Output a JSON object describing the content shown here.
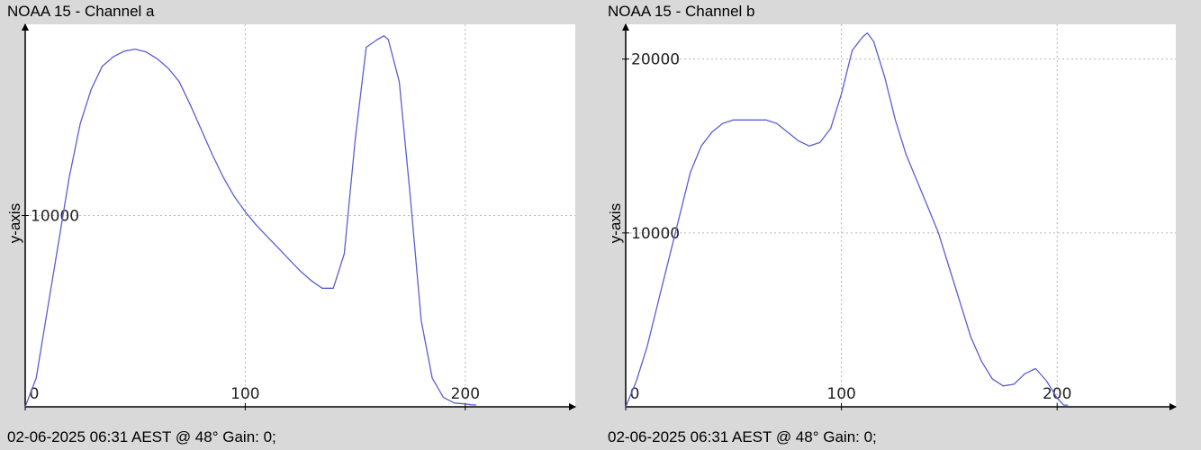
{
  "chart_data": [
    {
      "type": "line",
      "title": "NOAA 15 - Channel a",
      "xlabel": "",
      "ylabel": "y-axis",
      "xlim": [
        0,
        250
      ],
      "ylim": [
        0,
        20000
      ],
      "x_ticks": [
        0,
        100,
        200
      ],
      "y_ticks": [
        10000
      ],
      "grid": true,
      "line_color": "#5a5fd0",
      "footer": "02-06-2025 06:31 AEST @ 48° Gain: 0;",
      "series": [
        {
          "x": [
            0,
            5,
            10,
            15,
            20,
            25,
            30,
            35,
            40,
            45,
            50,
            55,
            60,
            65,
            70,
            75,
            80,
            85,
            90,
            95,
            100,
            105,
            110,
            115,
            120,
            125,
            130,
            135,
            140,
            145,
            150,
            155,
            160,
            163,
            165,
            170,
            175,
            180,
            185,
            190,
            195,
            200,
            203,
            205
          ],
          "values": [
            0,
            1500,
            5000,
            8500,
            12000,
            14800,
            16600,
            17800,
            18300,
            18600,
            18700,
            18550,
            18200,
            17700,
            17000,
            15800,
            14500,
            13200,
            12000,
            11000,
            10200,
            9500,
            8900,
            8300,
            7700,
            7100,
            6600,
            6200,
            6200,
            8000,
            14000,
            18800,
            19200,
            19400,
            19200,
            17000,
            11000,
            4500,
            1500,
            500,
            200,
            150,
            100,
            100
          ]
        }
      ]
    },
    {
      "type": "line",
      "title": "NOAA 15 - Channel b",
      "xlabel": "",
      "ylabel": "y-axis",
      "xlim": [
        0,
        255
      ],
      "ylim": [
        0,
        22000
      ],
      "x_ticks": [
        0,
        100,
        200
      ],
      "y_ticks": [
        10000,
        20000
      ],
      "grid": true,
      "line_color": "#5a5fd0",
      "footer": "02-06-2025 06:31 AEST @ 48° Gain: 0;",
      "series": [
        {
          "x": [
            0,
            5,
            10,
            15,
            20,
            25,
            30,
            35,
            40,
            45,
            50,
            55,
            60,
            65,
            70,
            75,
            80,
            85,
            90,
            95,
            100,
            105,
            110,
            112,
            115,
            120,
            125,
            130,
            135,
            140,
            145,
            150,
            155,
            160,
            165,
            170,
            175,
            180,
            185,
            190,
            195,
            200,
            203,
            205
          ],
          "values": [
            0,
            1500,
            3500,
            6000,
            8500,
            11000,
            13500,
            15000,
            15800,
            16300,
            16500,
            16500,
            16500,
            16500,
            16300,
            15800,
            15300,
            15000,
            15200,
            16000,
            18000,
            20500,
            21300,
            21500,
            21000,
            19000,
            16500,
            14500,
            13000,
            11500,
            10000,
            8000,
            6000,
            4000,
            2600,
            1600,
            1200,
            1300,
            1900,
            2200,
            1500,
            500,
            100,
            100
          ]
        }
      ]
    }
  ]
}
